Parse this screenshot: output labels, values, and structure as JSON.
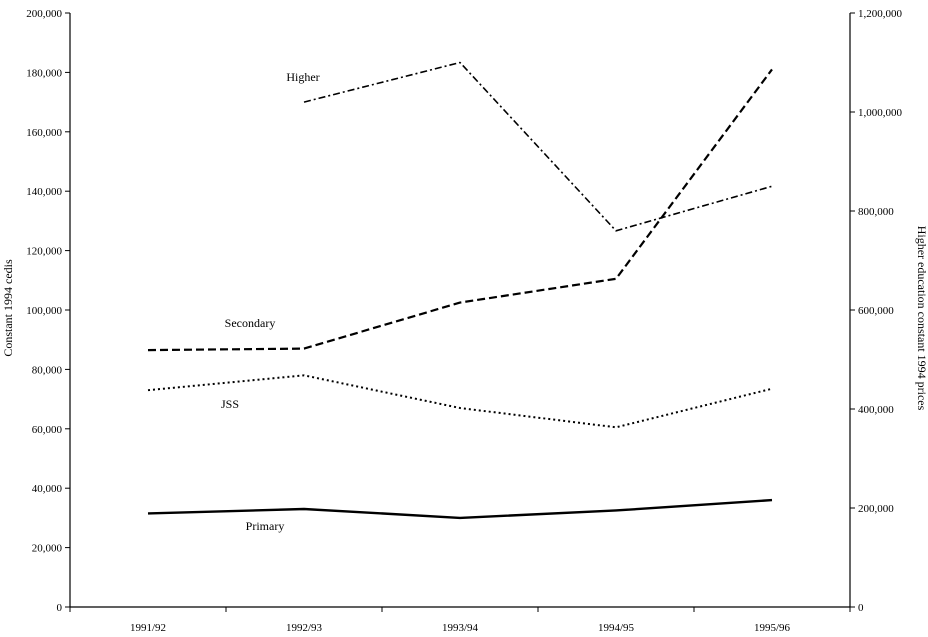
{
  "chart_data": {
    "type": "line",
    "title": "",
    "xlabel": "",
    "ylabel": "Constant 1994 cedis",
    "y2label": "Higher education constant 1994 prices",
    "categories": [
      "1991/92",
      "1992/93",
      "1993/94",
      "1994/95",
      "1995/96"
    ],
    "ylim": [
      0,
      200000
    ],
    "y2lim": [
      0,
      1200000
    ],
    "y_ticks": [
      "0",
      "20,000",
      "40,000",
      "60,000",
      "80,000",
      "100,000",
      "120,000",
      "140,000",
      "160,000",
      "180,000",
      "200,000"
    ],
    "y2_ticks": [
      "0",
      "200,000",
      "400,000",
      "600,000",
      "800,000",
      "1,000,000",
      "1,200,000"
    ],
    "grid": false,
    "series": [
      {
        "name": "Primary",
        "axis": "left",
        "style": "solid",
        "values": [
          31500,
          33000,
          30000,
          32500,
          36000
        ]
      },
      {
        "name": "JSS",
        "axis": "left",
        "style": "dotted",
        "values": [
          73000,
          78000,
          67000,
          60500,
          73500
        ]
      },
      {
        "name": "Secondary",
        "axis": "left",
        "style": "dashed",
        "values": [
          86500,
          87000,
          102500,
          110500,
          181000
        ]
      },
      {
        "name": "Higher",
        "axis": "right",
        "style": "dashdot",
        "values": [
          null,
          1020000,
          1100000,
          760000,
          850000
        ]
      }
    ]
  }
}
